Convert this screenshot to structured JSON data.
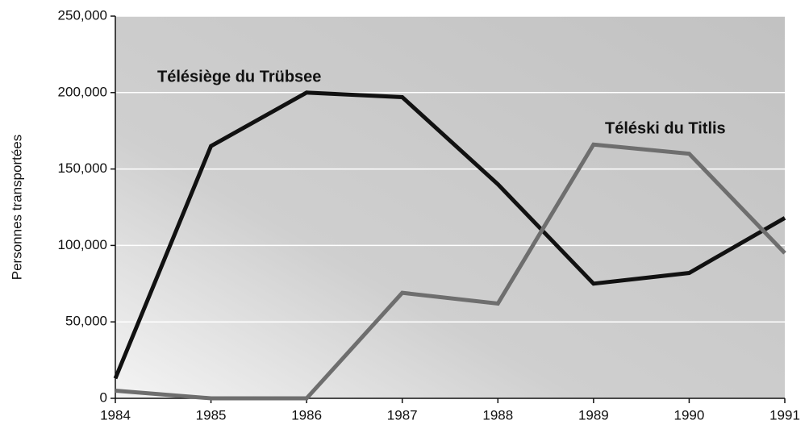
{
  "chart_data": {
    "type": "line",
    "ylabel": "Personnes transportées",
    "x": [
      1984,
      1985,
      1986,
      1987,
      1988,
      1989,
      1990,
      1991
    ],
    "series": [
      {
        "name": "Télésiège du Trübsee",
        "color": "#111111",
        "values": [
          13000,
          165000,
          200000,
          197000,
          140000,
          75000,
          82000,
          118000
        ]
      },
      {
        "name": "Téléski du Titlis",
        "color": "#6e6e6e",
        "values": [
          5000,
          0,
          0,
          69000,
          62000,
          166000,
          160000,
          95000
        ]
      }
    ],
    "xlim": [
      1984,
      1991
    ],
    "xticks": [
      1984,
      1985,
      1986,
      1987,
      1988,
      1989,
      1990,
      1991
    ],
    "ylim": [
      0,
      250000
    ],
    "yticks": [
      0,
      {
        "value": 50000,
        "label": "50,000"
      },
      {
        "value": 100000,
        "label": "100,000"
      },
      {
        "value": 150000,
        "label": "150,000"
      },
      {
        "value": 200000,
        "label": "200,000"
      },
      {
        "value": 250000,
        "label": "250,000"
      }
    ],
    "grid": true
  }
}
